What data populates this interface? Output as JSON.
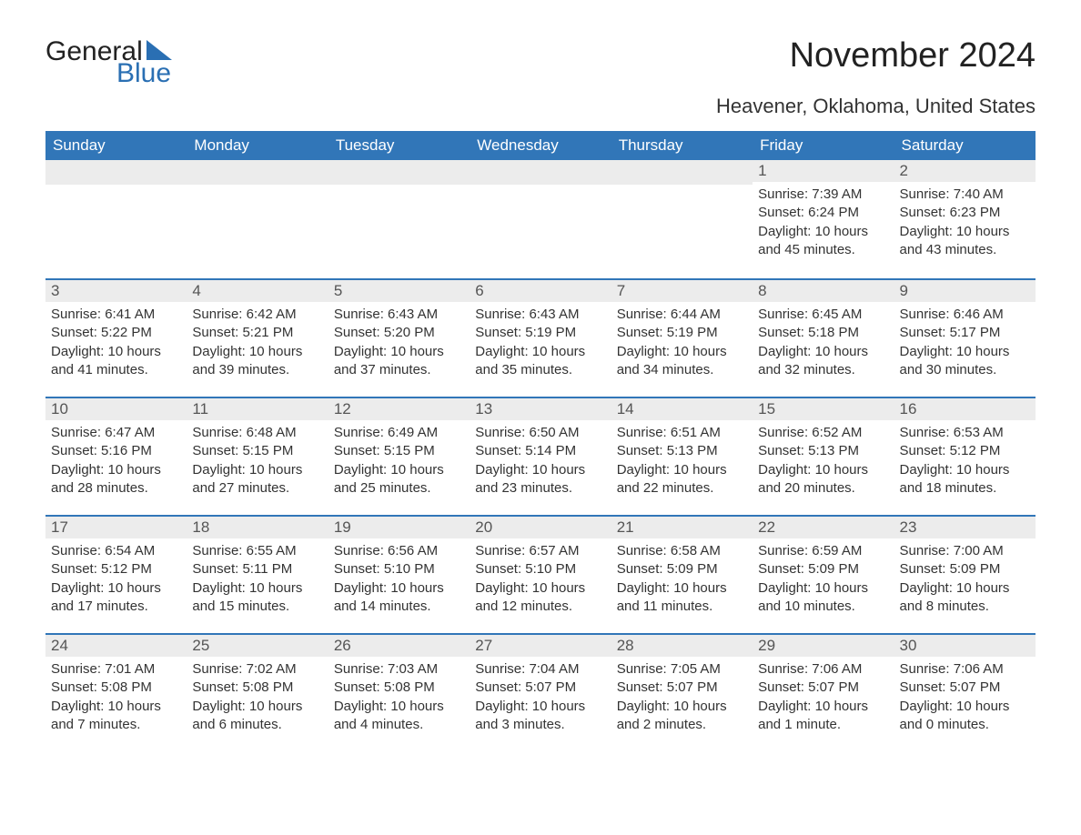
{
  "logo": {
    "text1": "General",
    "text2": "Blue",
    "tri_color": "#2a6fb3"
  },
  "title": "November 2024",
  "subtitle": "Heavener, Oklahoma, United States",
  "colors": {
    "header_bg": "#3176b8",
    "header_text": "#ffffff",
    "daynum_bg": "#ececec",
    "row_border": "#3176b8",
    "text": "#333333",
    "background": "#ffffff"
  },
  "day_headers": [
    "Sunday",
    "Monday",
    "Tuesday",
    "Wednesday",
    "Thursday",
    "Friday",
    "Saturday"
  ],
  "weeks": [
    [
      null,
      null,
      null,
      null,
      null,
      {
        "num": "1",
        "sunrise": "Sunrise: 7:39 AM",
        "sunset": "Sunset: 6:24 PM",
        "daylight": "Daylight: 10 hours and 45 minutes."
      },
      {
        "num": "2",
        "sunrise": "Sunrise: 7:40 AM",
        "sunset": "Sunset: 6:23 PM",
        "daylight": "Daylight: 10 hours and 43 minutes."
      }
    ],
    [
      {
        "num": "3",
        "sunrise": "Sunrise: 6:41 AM",
        "sunset": "Sunset: 5:22 PM",
        "daylight": "Daylight: 10 hours and 41 minutes."
      },
      {
        "num": "4",
        "sunrise": "Sunrise: 6:42 AM",
        "sunset": "Sunset: 5:21 PM",
        "daylight": "Daylight: 10 hours and 39 minutes."
      },
      {
        "num": "5",
        "sunrise": "Sunrise: 6:43 AM",
        "sunset": "Sunset: 5:20 PM",
        "daylight": "Daylight: 10 hours and 37 minutes."
      },
      {
        "num": "6",
        "sunrise": "Sunrise: 6:43 AM",
        "sunset": "Sunset: 5:19 PM",
        "daylight": "Daylight: 10 hours and 35 minutes."
      },
      {
        "num": "7",
        "sunrise": "Sunrise: 6:44 AM",
        "sunset": "Sunset: 5:19 PM",
        "daylight": "Daylight: 10 hours and 34 minutes."
      },
      {
        "num": "8",
        "sunrise": "Sunrise: 6:45 AM",
        "sunset": "Sunset: 5:18 PM",
        "daylight": "Daylight: 10 hours and 32 minutes."
      },
      {
        "num": "9",
        "sunrise": "Sunrise: 6:46 AM",
        "sunset": "Sunset: 5:17 PM",
        "daylight": "Daylight: 10 hours and 30 minutes."
      }
    ],
    [
      {
        "num": "10",
        "sunrise": "Sunrise: 6:47 AM",
        "sunset": "Sunset: 5:16 PM",
        "daylight": "Daylight: 10 hours and 28 minutes."
      },
      {
        "num": "11",
        "sunrise": "Sunrise: 6:48 AM",
        "sunset": "Sunset: 5:15 PM",
        "daylight": "Daylight: 10 hours and 27 minutes."
      },
      {
        "num": "12",
        "sunrise": "Sunrise: 6:49 AM",
        "sunset": "Sunset: 5:15 PM",
        "daylight": "Daylight: 10 hours and 25 minutes."
      },
      {
        "num": "13",
        "sunrise": "Sunrise: 6:50 AM",
        "sunset": "Sunset: 5:14 PM",
        "daylight": "Daylight: 10 hours and 23 minutes."
      },
      {
        "num": "14",
        "sunrise": "Sunrise: 6:51 AM",
        "sunset": "Sunset: 5:13 PM",
        "daylight": "Daylight: 10 hours and 22 minutes."
      },
      {
        "num": "15",
        "sunrise": "Sunrise: 6:52 AM",
        "sunset": "Sunset: 5:13 PM",
        "daylight": "Daylight: 10 hours and 20 minutes."
      },
      {
        "num": "16",
        "sunrise": "Sunrise: 6:53 AM",
        "sunset": "Sunset: 5:12 PM",
        "daylight": "Daylight: 10 hours and 18 minutes."
      }
    ],
    [
      {
        "num": "17",
        "sunrise": "Sunrise: 6:54 AM",
        "sunset": "Sunset: 5:12 PM",
        "daylight": "Daylight: 10 hours and 17 minutes."
      },
      {
        "num": "18",
        "sunrise": "Sunrise: 6:55 AM",
        "sunset": "Sunset: 5:11 PM",
        "daylight": "Daylight: 10 hours and 15 minutes."
      },
      {
        "num": "19",
        "sunrise": "Sunrise: 6:56 AM",
        "sunset": "Sunset: 5:10 PM",
        "daylight": "Daylight: 10 hours and 14 minutes."
      },
      {
        "num": "20",
        "sunrise": "Sunrise: 6:57 AM",
        "sunset": "Sunset: 5:10 PM",
        "daylight": "Daylight: 10 hours and 12 minutes."
      },
      {
        "num": "21",
        "sunrise": "Sunrise: 6:58 AM",
        "sunset": "Sunset: 5:09 PM",
        "daylight": "Daylight: 10 hours and 11 minutes."
      },
      {
        "num": "22",
        "sunrise": "Sunrise: 6:59 AM",
        "sunset": "Sunset: 5:09 PM",
        "daylight": "Daylight: 10 hours and 10 minutes."
      },
      {
        "num": "23",
        "sunrise": "Sunrise: 7:00 AM",
        "sunset": "Sunset: 5:09 PM",
        "daylight": "Daylight: 10 hours and 8 minutes."
      }
    ],
    [
      {
        "num": "24",
        "sunrise": "Sunrise: 7:01 AM",
        "sunset": "Sunset: 5:08 PM",
        "daylight": "Daylight: 10 hours and 7 minutes."
      },
      {
        "num": "25",
        "sunrise": "Sunrise: 7:02 AM",
        "sunset": "Sunset: 5:08 PM",
        "daylight": "Daylight: 10 hours and 6 minutes."
      },
      {
        "num": "26",
        "sunrise": "Sunrise: 7:03 AM",
        "sunset": "Sunset: 5:08 PM",
        "daylight": "Daylight: 10 hours and 4 minutes."
      },
      {
        "num": "27",
        "sunrise": "Sunrise: 7:04 AM",
        "sunset": "Sunset: 5:07 PM",
        "daylight": "Daylight: 10 hours and 3 minutes."
      },
      {
        "num": "28",
        "sunrise": "Sunrise: 7:05 AM",
        "sunset": "Sunset: 5:07 PM",
        "daylight": "Daylight: 10 hours and 2 minutes."
      },
      {
        "num": "29",
        "sunrise": "Sunrise: 7:06 AM",
        "sunset": "Sunset: 5:07 PM",
        "daylight": "Daylight: 10 hours and 1 minute."
      },
      {
        "num": "30",
        "sunrise": "Sunrise: 7:06 AM",
        "sunset": "Sunset: 5:07 PM",
        "daylight": "Daylight: 10 hours and 0 minutes."
      }
    ]
  ]
}
